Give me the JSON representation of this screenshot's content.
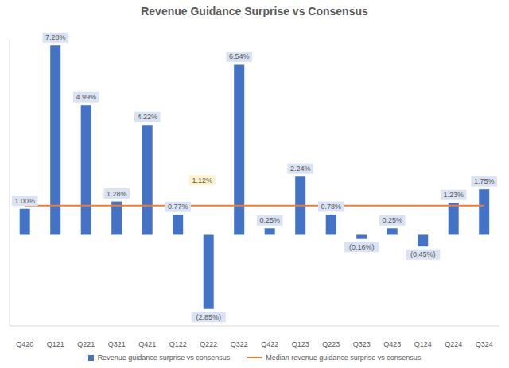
{
  "chart_data": {
    "type": "bar",
    "title": "Revenue Guidance Surprise vs Consensus",
    "categories": [
      "Q420",
      "Q121",
      "Q221",
      "Q321",
      "Q421",
      "Q122",
      "Q222",
      "Q322",
      "Q422",
      "Q123",
      "Q223",
      "Q323",
      "Q423",
      "Q124",
      "Q224",
      "Q324"
    ],
    "series": [
      {
        "name": "Revenue guidance surprise vs consensus",
        "type": "bar",
        "color": "#4472c4",
        "values": [
          1.0,
          7.28,
          4.99,
          1.28,
          4.22,
          0.77,
          -2.85,
          6.54,
          0.25,
          2.24,
          0.78,
          -0.16,
          0.25,
          -0.45,
          1.23,
          1.75
        ],
        "value_labels": [
          "1.00%",
          "7.28%",
          "4.99%",
          "1.28%",
          "4.22%",
          "0.77%",
          "(2.85%)",
          "6.54%",
          "0.25%",
          "2.24%",
          "0.78%",
          "(0.16%)",
          "0.25%",
          "(0.45%)",
          "1.23%",
          "1.75%"
        ]
      },
      {
        "name": "Median revenue guidance surprise vs consensus",
        "type": "line",
        "color": "#ed7d31",
        "values": [
          1.12,
          1.12,
          1.12,
          1.12,
          1.12,
          1.12,
          1.12,
          1.12,
          1.12,
          1.12,
          1.12,
          1.12,
          1.12,
          1.12,
          1.12,
          1.12
        ]
      }
    ],
    "annotations": [
      {
        "text": "1.12%",
        "category": "Q222",
        "value": 1.12
      }
    ],
    "ylim": [
      -3.5,
      7.5
    ],
    "data_labels": true,
    "tick_labels": "x",
    "grid": false,
    "legend": "bottom"
  }
}
